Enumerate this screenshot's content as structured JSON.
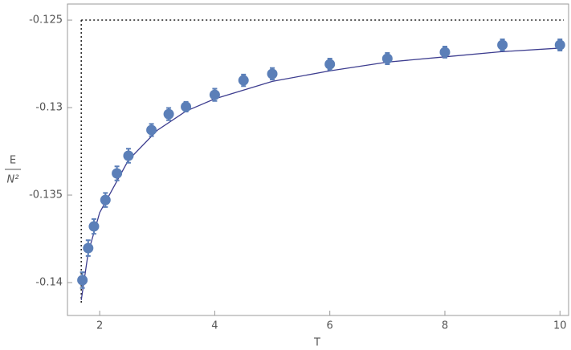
{
  "chart_data": {
    "type": "scatter",
    "x_label": "T",
    "y_label": {
      "numerator": "E",
      "denominator": "N²"
    },
    "xlim": [
      1.44,
      10.15
    ],
    "ylim": [
      -0.14188,
      -0.12408
    ],
    "xticks": [
      2,
      4,
      6,
      8,
      10
    ],
    "yticks": [
      -0.14,
      -0.135,
      -0.13,
      -0.125
    ],
    "points": {
      "color": "#5b7fb8",
      "x": [
        1.7,
        1.8,
        1.9,
        2.1,
        2.3,
        2.5,
        2.9,
        3.2,
        3.5,
        4.0,
        4.5,
        5.0,
        6.0,
        7.0,
        8.0,
        9.0,
        10.0
      ],
      "values": [
        -0.13986,
        -0.13803,
        -0.13679,
        -0.13528,
        -0.13376,
        -0.13275,
        -0.13128,
        -0.13037,
        -0.12995,
        -0.12927,
        -0.12844,
        -0.12807,
        -0.12752,
        -0.1272,
        -0.12683,
        -0.12642,
        -0.12642
      ],
      "errors": [
        0.00045,
        0.00045,
        0.00042,
        0.0004,
        0.0004,
        0.0004,
        0.00035,
        0.00035,
        0.00028,
        0.00035,
        0.00033,
        0.00033,
        0.00032,
        0.00032,
        0.00032,
        0.00032,
        0.00032
      ]
    },
    "fit": {
      "color": "#3d3d8f",
      "x": [
        1.68,
        1.8,
        2.0,
        2.5,
        3.0,
        3.5,
        4.0,
        5.0,
        6.0,
        7.0,
        8.0,
        9.0,
        10.0
      ],
      "values": [
        -0.141,
        -0.1383,
        -0.136,
        -0.133,
        -0.1313,
        -0.1302,
        -0.1295,
        -0.1285,
        -0.1279,
        -0.1274,
        -0.1271,
        -0.1268,
        -0.1266
      ]
    },
    "hline": -0.125,
    "vline": 1.68
  }
}
